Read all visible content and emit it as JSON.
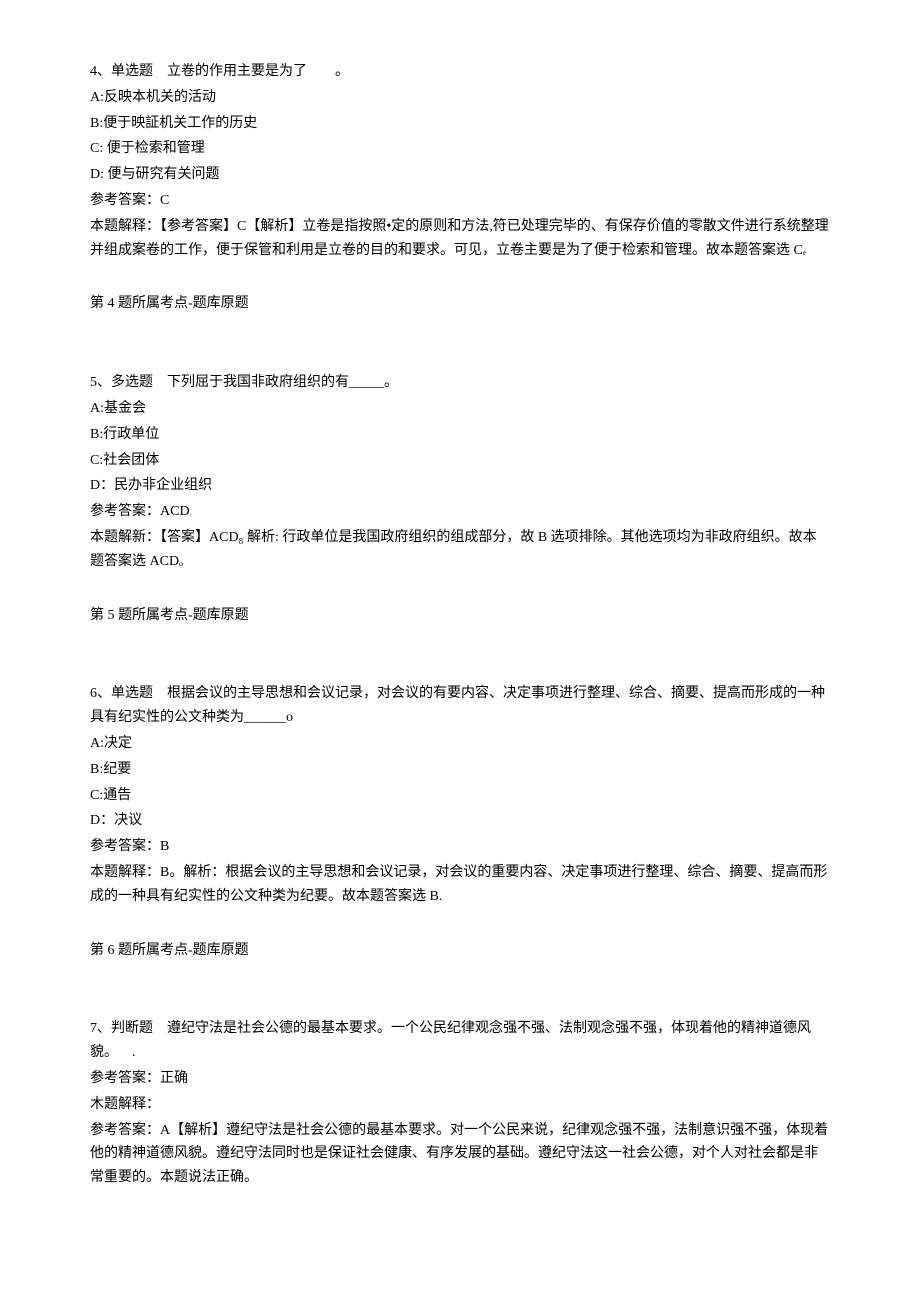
{
  "questions": [
    {
      "header": "4、单选题 立卷的作用主要是为了  。",
      "options": [
        "A:反映本机关的活动",
        "B:便于映証机关工作的历史",
        "C: 便于检索和管理",
        "D: 便与研究有关问题"
      ],
      "answer_line": "参考答案：C",
      "explanation": "本题解释：【参考答案】C【解析】立卷是指按照•定的原则和方法,符已处理完毕的、有保存价值的零散文件进行系统整理并组成案卷的工作，便于保管和利用是立卷的目的和要求。可见，立卷主要是为了便于检索和管理。故本题答案选 Cₑ",
      "footer": "第 4 题所属考点-题库原题"
    },
    {
      "header": "5、多选题 下列屈于我国非政府组织的有_____。",
      "options": [
        "A:基金会",
        "B:行政单位",
        "C:社会团体",
        "D：民办非企业组织"
      ],
      "answer_line": "参考答案：ACD",
      "explanation": "本题解新：【答案】ACD₈ 解析: 行政单位是我国政府组织的组成部分，故 B 选项排除。其他选项均为非政府组织。故本题答案选 ACDₒ",
      "footer": "第 5 题所属考点-题库原题"
    },
    {
      "header": "6、单选题 根据会议的主导思想和会议记录，对会议的有要内容、决定事项进行整理、综合、摘要、提高而形成的一种具有纪实性的公文种类为______o",
      "options": [
        "A:决定",
        "B:纪要",
        "C:通告",
        "D：决议"
      ],
      "answer_line": "参考答案：B",
      "explanation": "本题解释：B。解析：根据会议的主导思想和会议记录，对会议的重要内容、决定事项进行整理、综合、摘要、提高而形成的一种具有纪实性的公文种类为纪要。故本题答案选 B.",
      "footer": "第 6 题所属考点-题库原题"
    },
    {
      "header": "7、判断题 遵纪守法是社会公德的最基本要求。一个公民纪律观念强不强、法制观念强不强，体现着他的精神道德风貌。 .",
      "options": [],
      "answer_line": "参考答案：正确",
      "explanation_lines": [
        "木题解释：",
        "参考答案：A【解析】遵纪守法是社会公德的最基本要求。对一个公民来说，纪律观念强不强，法制意识强不强，体现着他的精神道德风貌。遵纪守法同时也是保证社会健康、有序发展的基础。遵纪守法这一社会公德，对个人对社会都是非常重要的。本题说法正确。"
      ],
      "footer": ""
    }
  ]
}
